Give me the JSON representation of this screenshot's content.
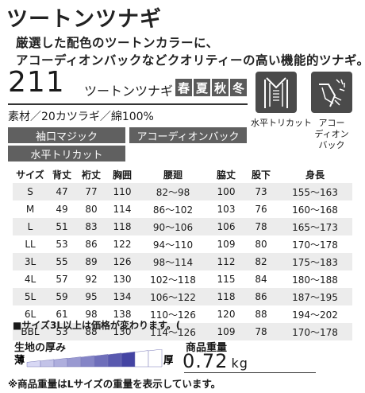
{
  "title": "ツートンツナギ",
  "lead": [
    "厳選した配色のツートンカラーに、",
    "アコーディオンバックなどクオリティーの高い機能的ツナギ。"
  ],
  "product": {
    "code": "211",
    "name": "ツートンツナギ",
    "seasons": [
      "春",
      "夏",
      "秋",
      "冬"
    ],
    "material": "素材／20カツラギ／綿100%"
  },
  "features": [
    "袖口マジック",
    "アコーディオンバック",
    "水平トリカット"
  ],
  "icons": [
    {
      "name": "horizontal-cut-icon",
      "label": "水平トリカット"
    },
    {
      "name": "accordion-back-icon",
      "label": "アコー\nディオン\nバック"
    }
  ],
  "size_table": {
    "headers": [
      "サイズ",
      "背丈",
      "裄丈",
      "胸囲",
      "腰廻",
      "脇丈",
      "股下",
      "身長"
    ],
    "rows": [
      [
        "S",
        "47",
        "77",
        "110",
        "82〜98",
        "100",
        "73",
        "155〜163"
      ],
      [
        "M",
        "49",
        "80",
        "114",
        "86〜102",
        "103",
        "76",
        "160〜168"
      ],
      [
        "L",
        "51",
        "83",
        "118",
        "90〜106",
        "106",
        "78",
        "165〜173"
      ],
      [
        "LL",
        "53",
        "86",
        "122",
        "94〜110",
        "109",
        "80",
        "170〜178"
      ],
      [
        "3L",
        "55",
        "89",
        "126",
        "98〜114",
        "112",
        "82",
        "175〜183"
      ],
      [
        "4L",
        "57",
        "92",
        "130",
        "102〜118",
        "115",
        "84",
        "180〜188"
      ],
      [
        "5L",
        "59",
        "95",
        "134",
        "106〜122",
        "118",
        "86",
        "187〜195"
      ],
      [
        "6L",
        "61",
        "98",
        "138",
        "110〜126",
        "120",
        "88",
        "194〜202"
      ],
      [
        "BBL",
        "53",
        "88",
        "130",
        "114〜126",
        "109",
        "78",
        "170〜178"
      ]
    ]
  },
  "note": "■サイズ3L以上は価格が変わります。(",
  "thickness": {
    "label": "生地の厚み",
    "thin": "薄",
    "thick": "厚",
    "level": 0.8
  },
  "weight": {
    "label": "商品重量",
    "value": "0.72",
    "unit": "kg"
  },
  "footnote": "※商品重量はLサイズの重量を表示しています。",
  "colors": {
    "dark_gray": "#4a4a4a",
    "season_bg": "#5a5a5a",
    "gradient_start": "#d8d8f4",
    "gradient_end": "#1a1a8c"
  }
}
